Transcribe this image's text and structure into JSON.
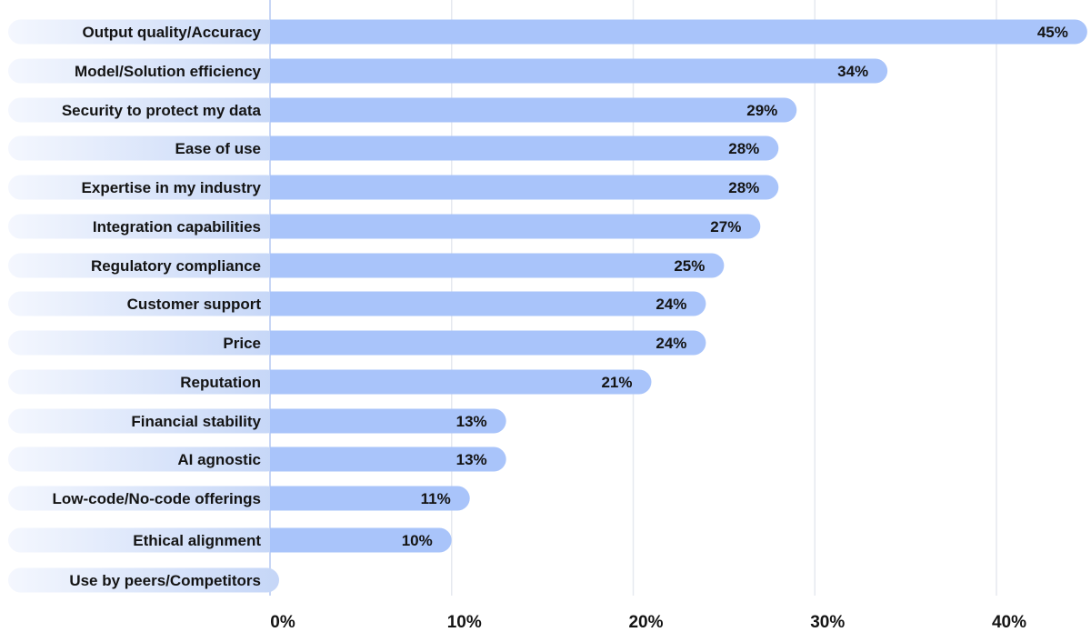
{
  "chart_data": {
    "type": "bar",
    "orientation": "horizontal",
    "title": "",
    "xlabel": "",
    "ylabel": "",
    "categories": [
      "Output quality/Accuracy",
      "Model/Solution efficiency",
      "Security to protect my data",
      "Ease of use",
      "Expertise in my industry",
      "Integration capabilities",
      "Regulatory compliance",
      "Customer support",
      "Price",
      "Reputation",
      "Financial stability",
      "AI agnostic",
      "Low-code/No-code offerings",
      "Ethical alignment",
      "Use by peers/Competitors"
    ],
    "values": [
      45,
      34,
      29,
      28,
      28,
      27,
      25,
      24,
      24,
      21,
      13,
      13,
      11,
      10,
      null
    ],
    "value_labels": [
      "45%",
      "34%",
      "29%",
      "28%",
      "28%",
      "27%",
      "25%",
      "24%",
      "24%",
      "21%",
      "13%",
      "13%",
      "11%",
      "10%",
      ""
    ],
    "xlim": [
      0,
      45
    ],
    "xticks": [
      0,
      10,
      20,
      30,
      40
    ],
    "xtick_labels": [
      "0%",
      "10%",
      "20%",
      "30%",
      "40%"
    ],
    "grid": "vertical",
    "legend": "none",
    "colors": {
      "bar": "#a9c4fa",
      "label_pill_light": "#f4f7fe",
      "label_pill_dark": "#c5d6f7",
      "grid": "#e6e9ef",
      "axis": "#c8d6f5",
      "text": "#141414"
    }
  }
}
